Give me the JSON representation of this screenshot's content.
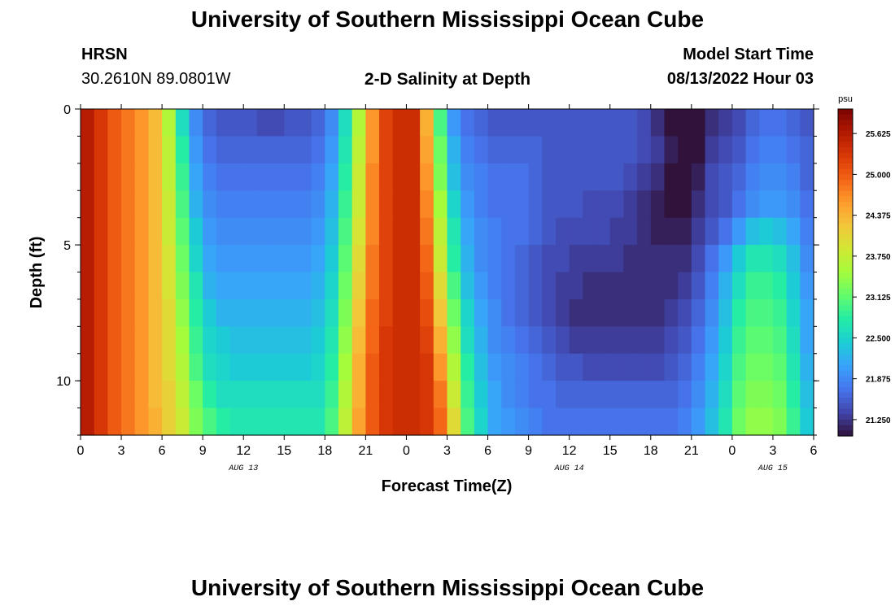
{
  "header": {
    "title": "University of Southern Mississippi Ocean Cube",
    "station": "HRSN",
    "coords": "30.2610N  89.0801W",
    "subtitle": "2-D Salinity at Depth",
    "model_label": "Model Start Time",
    "model_time": "08/13/2022 Hour 03"
  },
  "footer": {
    "title": "University of Southern Mississippi Ocean Cube"
  },
  "chart_data": {
    "type": "heatmap",
    "title": "2-D Salinity at Depth",
    "xlabel": "Forecast Time(Z)",
    "ylabel": "Depth (ft)",
    "x_tick_labels": [
      "0",
      "3",
      "6",
      "9",
      "12",
      "15",
      "18",
      "21",
      "0",
      "3",
      "6",
      "9",
      "12",
      "15",
      "18",
      "21",
      "0",
      "3",
      "6"
    ],
    "x_range_hours": [
      0,
      54
    ],
    "date_labels": [
      {
        "label": "AUG 13",
        "hour": 12
      },
      {
        "label": "AUG 14",
        "hour": 36
      },
      {
        "label": "AUG 15",
        "hour": 51
      }
    ],
    "y_tick_labels": [
      "0",
      "5",
      "10"
    ],
    "y_range": [
      0,
      12
    ],
    "y_inverted": true,
    "colorbar": {
      "unit": "psu",
      "min": 21.0,
      "max": 26.0,
      "tick_labels": [
        "25.625",
        "25.000",
        "24.375",
        "23.750",
        "23.125",
        "22.500",
        "21.875",
        "21.250"
      ],
      "colormap": [
        "#30123b",
        "#4145ab",
        "#4675ed",
        "#39a2fc",
        "#1bcfd4",
        "#24eca6",
        "#61fc6c",
        "#a4fc3b",
        "#d1e834",
        "#f3c63a",
        "#fe9b2d",
        "#f36315",
        "#d93806",
        "#b11901",
        "#7a0402"
      ]
    },
    "x_hours": [
      0,
      1,
      2,
      3,
      4,
      5,
      6,
      7,
      8,
      9,
      10,
      11,
      12,
      13,
      14,
      15,
      16,
      17,
      18,
      19,
      20,
      21,
      22,
      23,
      24,
      25,
      26,
      27,
      28,
      29,
      30,
      31,
      32,
      33,
      34,
      35,
      36,
      37,
      38,
      39,
      40,
      41,
      42,
      43,
      44,
      45,
      46,
      47,
      48,
      49,
      50,
      51,
      52,
      53
    ],
    "y_depths_ft": [
      0,
      1,
      2,
      3,
      4,
      5,
      6,
      7,
      8,
      9,
      10,
      11
    ],
    "values": [
      [
        25.6,
        25.3,
        25.0,
        24.8,
        24.6,
        24.3,
        23.6,
        22.6,
        21.9,
        21.6,
        21.5,
        21.5,
        21.5,
        21.4,
        21.4,
        21.5,
        21.5,
        21.6,
        21.9,
        22.6,
        23.6,
        24.6,
        25.2,
        25.4,
        25.4,
        24.4,
        23.0,
        22.0,
        21.7,
        21.6,
        21.5,
        21.5,
        21.5,
        21.5,
        21.5,
        21.5,
        21.5,
        21.5,
        21.5,
        21.5,
        21.5,
        21.4,
        21.2,
        21.0,
        20.7,
        20.8,
        21.2,
        21.3,
        21.4,
        21.6,
        21.7,
        21.7,
        21.6,
        21.5
      ],
      [
        25.6,
        25.3,
        25.0,
        24.8,
        24.6,
        24.3,
        23.7,
        22.8,
        22.0,
        21.7,
        21.6,
        21.6,
        21.6,
        21.6,
        21.6,
        21.6,
        21.6,
        21.7,
        22.0,
        22.7,
        23.7,
        24.6,
        25.2,
        25.4,
        25.4,
        24.5,
        23.2,
        22.2,
        21.8,
        21.7,
        21.6,
        21.6,
        21.6,
        21.6,
        21.5,
        21.5,
        21.5,
        21.5,
        21.5,
        21.5,
        21.5,
        21.4,
        21.3,
        21.1,
        20.8,
        20.9,
        21.3,
        21.4,
        21.5,
        21.7,
        21.8,
        21.8,
        21.7,
        21.6
      ],
      [
        25.6,
        25.3,
        25.0,
        24.8,
        24.6,
        24.3,
        23.7,
        22.9,
        22.1,
        21.8,
        21.7,
        21.7,
        21.7,
        21.7,
        21.7,
        21.7,
        21.7,
        21.8,
        22.1,
        22.8,
        23.8,
        24.7,
        25.2,
        25.4,
        25.4,
        24.6,
        23.3,
        22.3,
        21.9,
        21.8,
        21.7,
        21.7,
        21.7,
        21.6,
        21.5,
        21.5,
        21.5,
        21.5,
        21.5,
        21.5,
        21.4,
        21.3,
        21.2,
        21.0,
        20.9,
        21.1,
        21.4,
        21.5,
        21.6,
        21.8,
        21.9,
        21.9,
        21.8,
        21.6
      ],
      [
        25.6,
        25.3,
        25.0,
        24.8,
        24.6,
        24.3,
        23.8,
        23.0,
        22.2,
        21.9,
        21.8,
        21.8,
        21.8,
        21.8,
        21.8,
        21.8,
        21.8,
        21.9,
        22.2,
        22.9,
        23.8,
        24.7,
        25.2,
        25.4,
        25.4,
        24.7,
        23.5,
        22.5,
        22.0,
        21.8,
        21.7,
        21.7,
        21.7,
        21.6,
        21.5,
        21.5,
        21.5,
        21.4,
        21.4,
        21.4,
        21.3,
        21.2,
        21.1,
        21.0,
        21.0,
        21.2,
        21.4,
        21.5,
        21.7,
        21.9,
        22.0,
        22.0,
        21.9,
        21.7
      ],
      [
        25.6,
        25.3,
        25.0,
        24.8,
        24.6,
        24.3,
        23.8,
        23.1,
        22.4,
        22.0,
        21.9,
        21.9,
        21.9,
        21.9,
        21.9,
        21.9,
        21.9,
        22.0,
        22.3,
        23.0,
        23.9,
        24.7,
        25.2,
        25.4,
        25.4,
        24.8,
        23.7,
        22.7,
        22.1,
        21.9,
        21.8,
        21.7,
        21.7,
        21.6,
        21.5,
        21.4,
        21.4,
        21.4,
        21.4,
        21.3,
        21.3,
        21.2,
        21.1,
        21.1,
        21.1,
        21.3,
        21.5,
        21.7,
        22.0,
        22.3,
        22.4,
        22.3,
        22.1,
        21.8
      ],
      [
        25.6,
        25.3,
        25.0,
        24.8,
        24.6,
        24.3,
        23.9,
        23.2,
        22.5,
        22.1,
        22.0,
        22.0,
        22.0,
        22.0,
        22.0,
        22.0,
        22.0,
        22.1,
        22.4,
        23.1,
        24.0,
        24.8,
        25.2,
        25.4,
        25.4,
        24.9,
        23.8,
        22.8,
        22.2,
        21.9,
        21.8,
        21.7,
        21.6,
        21.5,
        21.4,
        21.4,
        21.3,
        21.3,
        21.3,
        21.3,
        21.2,
        21.2,
        21.2,
        21.2,
        21.2,
        21.4,
        21.7,
        22.0,
        22.4,
        22.7,
        22.7,
        22.6,
        22.3,
        21.9
      ],
      [
        25.6,
        25.3,
        25.0,
        24.8,
        24.6,
        24.3,
        23.9,
        23.3,
        22.7,
        22.2,
        22.1,
        22.1,
        22.1,
        22.1,
        22.1,
        22.1,
        22.1,
        22.2,
        22.5,
        23.2,
        24.1,
        24.8,
        25.2,
        25.4,
        25.4,
        25.0,
        24.0,
        23.0,
        22.3,
        22.0,
        21.8,
        21.7,
        21.6,
        21.5,
        21.4,
        21.3,
        21.3,
        21.2,
        21.2,
        21.2,
        21.2,
        21.2,
        21.2,
        21.2,
        21.3,
        21.5,
        21.8,
        22.2,
        22.6,
        22.9,
        22.9,
        22.8,
        22.4,
        22.0
      ],
      [
        25.6,
        25.3,
        25.0,
        24.8,
        24.6,
        24.3,
        24.0,
        23.4,
        22.8,
        22.4,
        22.2,
        22.2,
        22.2,
        22.2,
        22.2,
        22.2,
        22.2,
        22.3,
        22.6,
        23.3,
        24.2,
        24.9,
        25.2,
        25.4,
        25.4,
        25.1,
        24.2,
        23.2,
        22.5,
        22.1,
        21.9,
        21.7,
        21.6,
        21.5,
        21.4,
        21.3,
        21.2,
        21.2,
        21.2,
        21.2,
        21.2,
        21.2,
        21.2,
        21.3,
        21.4,
        21.6,
        21.9,
        22.3,
        22.8,
        23.0,
        23.0,
        22.9,
        22.5,
        22.1
      ],
      [
        25.6,
        25.3,
        25.0,
        24.8,
        24.6,
        24.3,
        24.0,
        23.5,
        22.9,
        22.5,
        22.4,
        22.3,
        22.3,
        22.3,
        22.3,
        22.3,
        22.3,
        22.4,
        22.7,
        23.4,
        24.3,
        24.9,
        25.3,
        25.4,
        25.4,
        25.2,
        24.4,
        23.4,
        22.6,
        22.2,
        21.9,
        21.8,
        21.7,
        21.6,
        21.5,
        21.4,
        21.3,
        21.3,
        21.3,
        21.3,
        21.3,
        21.3,
        21.3,
        21.4,
        21.5,
        21.7,
        22.0,
        22.4,
        22.9,
        23.1,
        23.1,
        23.0,
        22.6,
        22.1
      ],
      [
        25.6,
        25.3,
        25.0,
        24.8,
        24.6,
        24.3,
        24.0,
        23.6,
        23.0,
        22.6,
        22.5,
        22.4,
        22.4,
        22.4,
        22.4,
        22.4,
        22.4,
        22.5,
        22.8,
        23.5,
        24.4,
        25.0,
        25.3,
        25.4,
        25.4,
        25.3,
        24.6,
        23.6,
        22.8,
        22.3,
        22.0,
        21.9,
        21.8,
        21.7,
        21.6,
        21.5,
        21.5,
        21.4,
        21.4,
        21.4,
        21.4,
        21.4,
        21.4,
        21.5,
        21.6,
        21.8,
        22.1,
        22.5,
        23.0,
        23.2,
        23.2,
        23.1,
        22.7,
        22.2
      ],
      [
        25.6,
        25.3,
        25.0,
        24.8,
        24.6,
        24.3,
        24.1,
        23.7,
        23.2,
        22.8,
        22.6,
        22.6,
        22.6,
        22.6,
        22.6,
        22.6,
        22.6,
        22.6,
        22.9,
        23.6,
        24.4,
        25.0,
        25.3,
        25.4,
        25.4,
        25.3,
        24.8,
        23.8,
        22.9,
        22.4,
        22.1,
        21.9,
        21.8,
        21.7,
        21.7,
        21.6,
        21.6,
        21.6,
        21.6,
        21.6,
        21.6,
        21.6,
        21.6,
        21.6,
        21.7,
        21.9,
        22.2,
        22.6,
        23.1,
        23.3,
        23.3,
        23.2,
        22.8,
        22.3
      ],
      [
        25.6,
        25.3,
        25.0,
        24.8,
        24.6,
        24.4,
        24.1,
        23.8,
        23.3,
        23.0,
        22.8,
        22.7,
        22.7,
        22.7,
        22.7,
        22.7,
        22.7,
        22.7,
        23.0,
        23.7,
        24.5,
        25.0,
        25.3,
        25.4,
        25.4,
        25.3,
        24.9,
        24.0,
        23.0,
        22.5,
        22.1,
        22.0,
        21.9,
        21.8,
        21.7,
        21.7,
        21.7,
        21.7,
        21.7,
        21.7,
        21.7,
        21.7,
        21.7,
        21.7,
        21.8,
        22.0,
        22.3,
        22.7,
        23.2,
        23.4,
        23.4,
        23.3,
        22.9,
        22.4
      ]
    ]
  }
}
